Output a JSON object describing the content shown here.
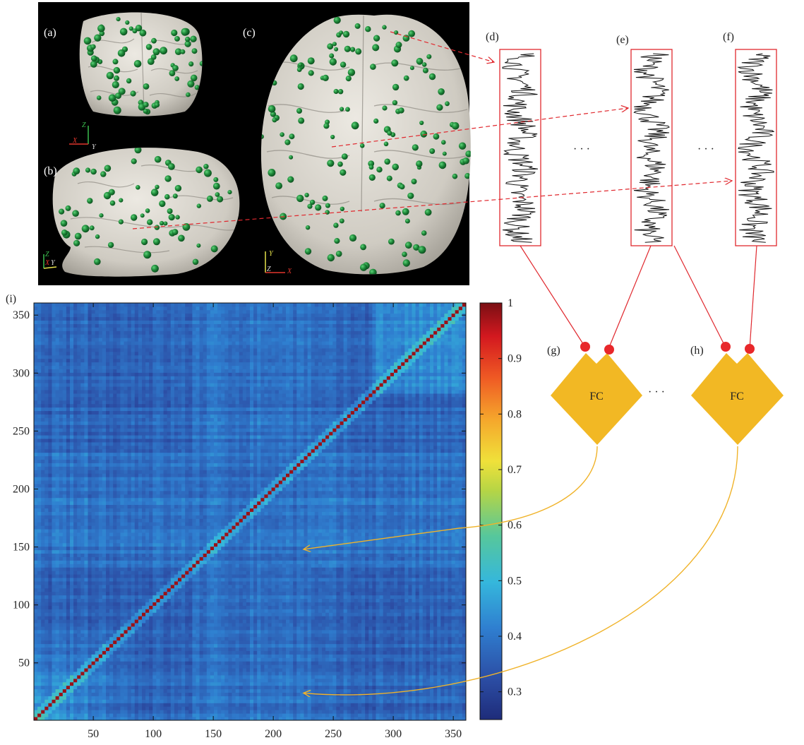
{
  "panels": {
    "a": "(a)",
    "b": "(b)",
    "c": "(c)",
    "d": "(d)",
    "e": "(e)",
    "f": "(f)",
    "g": "(g)",
    "h": "(h)",
    "i": "(i)"
  },
  "fc_label": "FC",
  "ellipsis": "· · ·",
  "brain_axes": {
    "a": {
      "up": "Z",
      "left": "X",
      "right": "Y"
    },
    "b": {
      "up": "Z",
      "left": "X",
      "right": "Y"
    },
    "c": {
      "up": "Y",
      "corner": "Z",
      "right": "X"
    }
  },
  "colors": {
    "connector": "#e0282e",
    "fc_fill": "#f2b824",
    "node": "#e8272a",
    "curve": "#f0b32a",
    "brain_bg": "#000000",
    "brain_surface": "#d9d6cf",
    "electrode": "#1f8a3a"
  },
  "chart_data": {
    "type": "heatmap",
    "title": "",
    "xlabel": "",
    "ylabel": "",
    "xlim": [
      1,
      360
    ],
    "ylim": [
      1,
      360
    ],
    "xticks": [
      50,
      100,
      150,
      200,
      250,
      300,
      350
    ],
    "yticks": [
      50,
      100,
      150,
      200,
      250,
      300,
      350
    ],
    "colorbar": {
      "min": 0.25,
      "max": 1,
      "ticks": [
        0.3,
        0.4,
        0.5,
        0.6,
        0.7,
        0.8,
        0.9,
        1
      ]
    },
    "arrow_targets": [
      [
        224,
        148
      ],
      [
        224,
        24
      ]
    ]
  }
}
